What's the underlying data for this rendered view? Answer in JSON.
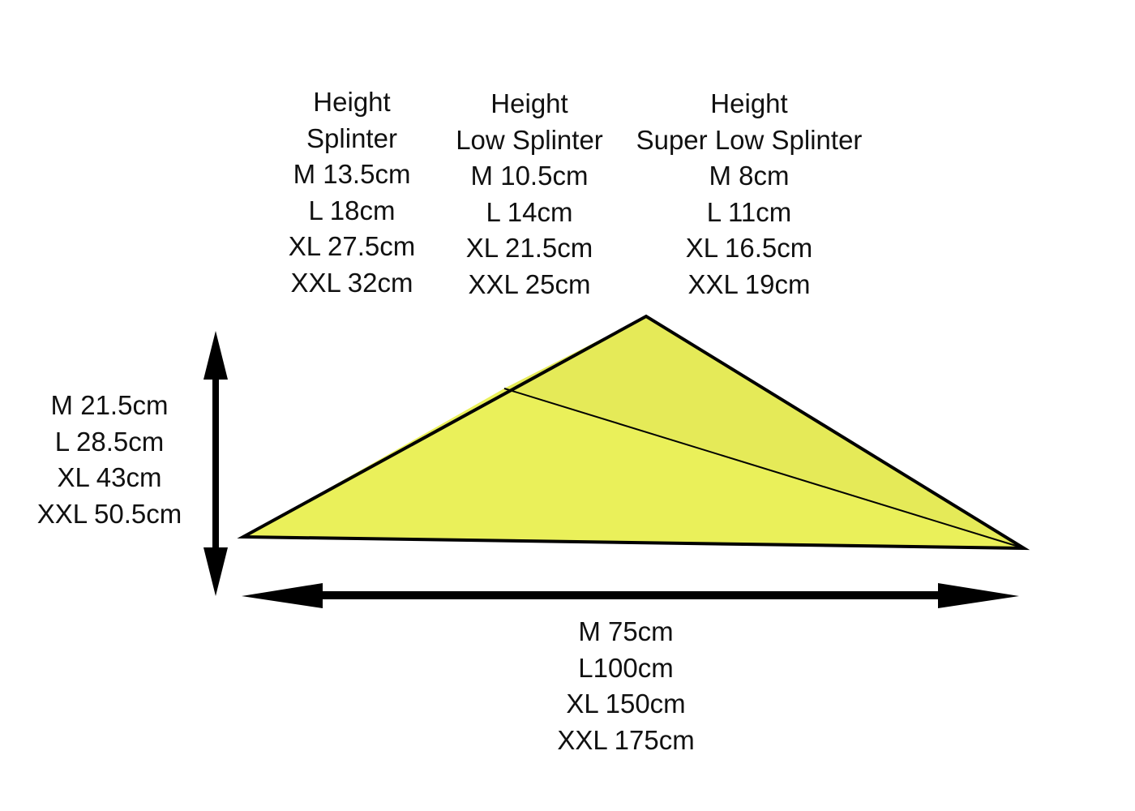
{
  "colors": {
    "fill_lower": "#eaf05a",
    "fill_upper": "#e5ea58",
    "stroke": "#000000"
  },
  "columns": [
    {
      "title": [
        "Height",
        "Splinter"
      ],
      "sizes": [
        "M 13.5cm",
        "L 18cm",
        "XL 27.5cm",
        "XXL 32cm"
      ]
    },
    {
      "title": [
        "Height",
        "Low Splinter"
      ],
      "sizes": [
        "M 10.5cm",
        "L 14cm",
        "XL 21.5cm",
        "XXL 25cm"
      ]
    },
    {
      "title": [
        "Height",
        "Super Low Splinter"
      ],
      "sizes": [
        "M 8cm",
        "L 11cm",
        "XL 16.5cm",
        "XXL 19cm"
      ]
    }
  ],
  "side": {
    "sizes": [
      "M 21.5cm",
      "L 28.5cm",
      "XL 43cm",
      "XXL 50.5cm"
    ]
  },
  "bottom": {
    "sizes": [
      "M 75cm",
      "L100cm",
      "XL 150cm",
      "XXL 175cm"
    ]
  }
}
